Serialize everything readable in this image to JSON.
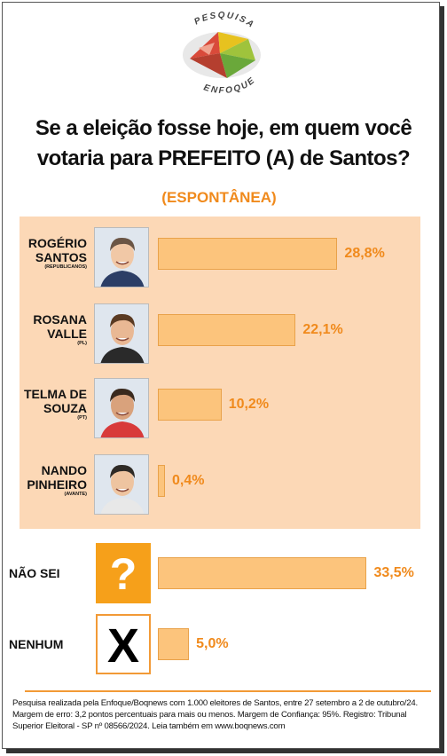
{
  "logo": {
    "top_text": "PESQUISA",
    "bottom_text": "ENFOQUE"
  },
  "title": {
    "line1": "Se a eleição fosse hoje, em quem você",
    "line2": "votaria para PREFEITO (A) de Santos?"
  },
  "subtitle": "(ESPONTÂNEA)",
  "colors": {
    "bar": "#fcc47c",
    "bar_border": "#e9a24a",
    "value": "#f08a1c",
    "panel": "#fcd8b6",
    "question_box": "#f6a01a"
  },
  "chart_data": {
    "type": "bar",
    "orientation": "horizontal",
    "unit": "%",
    "categories": [
      "ROGÉRIO SANTOS",
      "ROSANA VALLE",
      "TELMA DE SOUZA",
      "NANDO PINHEIRO",
      "NÃO SEI",
      "NENHUM"
    ],
    "values": [
      28.8,
      22.1,
      10.2,
      0.4,
      33.5,
      5.0
    ],
    "labels": [
      "28,8%",
      "22,1%",
      "10,2%",
      "0,4%",
      "33,5%",
      "5,0%"
    ],
    "xlim": [
      0,
      35
    ],
    "rows": [
      {
        "name_line1": "ROGÉRIO",
        "name_line2": "SANTOS",
        "party": "(REPUBLICANOS)",
        "value": 28.8,
        "label": "28,8%",
        "icon": "candidate-photo"
      },
      {
        "name_line1": "ROSANA",
        "name_line2": "VALLE",
        "party": "(PL)",
        "value": 22.1,
        "label": "22,1%",
        "icon": "candidate-photo"
      },
      {
        "name_line1": "TELMA DE",
        "name_line2": "SOUZA",
        "party": "(PT)",
        "value": 10.2,
        "label": "10,2%",
        "icon": "candidate-photo"
      },
      {
        "name_line1": "NANDO",
        "name_line2": "PINHEIRO",
        "party": "(AVANTE)",
        "value": 0.4,
        "label": "0,4%",
        "icon": "candidate-photo"
      },
      {
        "name_line1": "NÃO SEI",
        "name_line2": "",
        "party": "",
        "value": 33.5,
        "label": "33,5%",
        "icon": "question-mark-icon",
        "glyph": "?"
      },
      {
        "name_line1": "NENHUM",
        "name_line2": "",
        "party": "",
        "value": 5.0,
        "label": "5,0%",
        "icon": "x-mark-icon",
        "glyph": "X"
      }
    ]
  },
  "footer": "Pesquisa realizada pela Enfoque/Boqnews com 1.000 eleitores de Santos, entre 27 setembro a 2 de outubro/24. Margem de erro: 3,2 pontos percentuais para mais ou menos. Margem de Confiança: 95%. Registro: Tribunal Superior Eleitoral - SP nº 08566/2024. Leia também em www.boqnews.com"
}
